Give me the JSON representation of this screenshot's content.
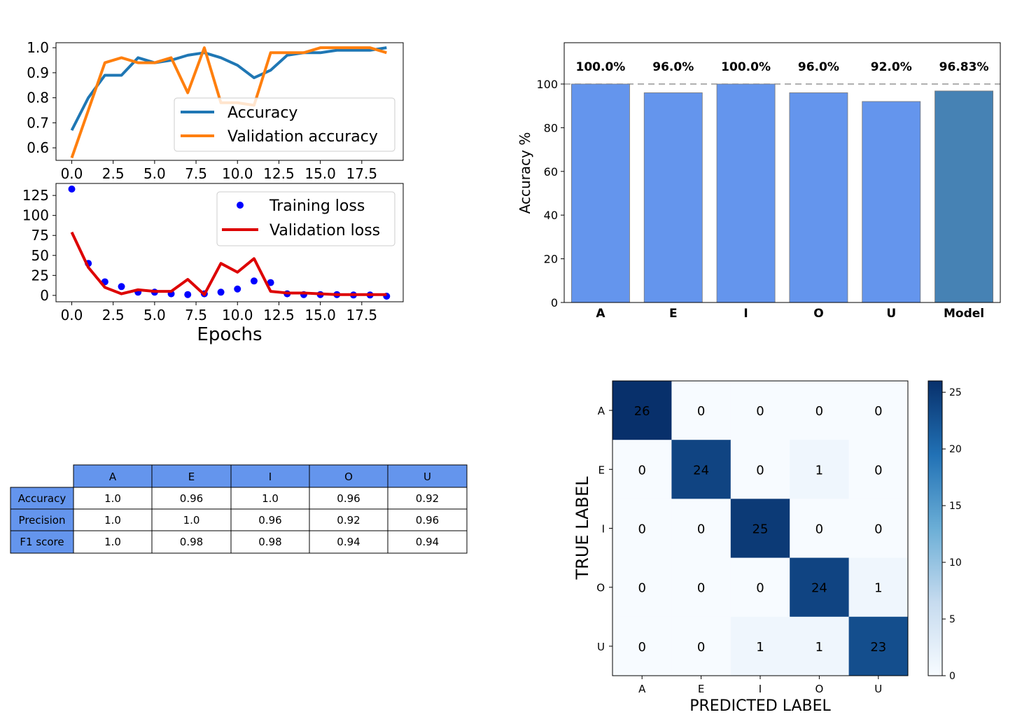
{
  "chart_data": [
    {
      "type": "line",
      "x": [
        0,
        1,
        2,
        3,
        4,
        5,
        6,
        7,
        8,
        9,
        10,
        11,
        12,
        13,
        14,
        15,
        16,
        17,
        18,
        19
      ],
      "xticks": [
        "0.0",
        "2.5",
        "5.0",
        "7.5",
        "10.0",
        "12.5",
        "15.0",
        "17.5"
      ],
      "yticks": [
        "0.6",
        "0.7",
        "0.8",
        "0.9",
        "1.0"
      ],
      "ylim": [
        0.55,
        1.02
      ],
      "legend_position": "center-right",
      "series": [
        {
          "name": "Accuracy",
          "color": "#1f77b4",
          "values": [
            0.67,
            0.8,
            0.89,
            0.89,
            0.96,
            0.94,
            0.95,
            0.97,
            0.98,
            0.96,
            0.93,
            0.88,
            0.91,
            0.97,
            0.98,
            0.98,
            0.99,
            0.99,
            0.99,
            1.0
          ]
        },
        {
          "name": "Validation accuracy",
          "color": "#ff7f0e",
          "values": [
            0.56,
            0.75,
            0.94,
            0.96,
            0.94,
            0.94,
            0.96,
            0.82,
            1.0,
            0.78,
            0.78,
            0.77,
            0.98,
            0.98,
            0.98,
            1.0,
            1.0,
            1.0,
            1.0,
            0.98
          ]
        }
      ]
    },
    {
      "type": "line",
      "x": [
        0,
        1,
        2,
        3,
        4,
        5,
        6,
        7,
        8,
        9,
        10,
        11,
        12,
        13,
        14,
        15,
        16,
        17,
        18,
        19
      ],
      "xticks": [
        "0.0",
        "2.5",
        "5.0",
        "7.5",
        "10.0",
        "12.5",
        "15.0",
        "17.5"
      ],
      "yticks": [
        "0",
        "25",
        "50",
        "75",
        "100",
        "125"
      ],
      "ylim": [
        -8,
        140
      ],
      "xlabel": "Epochs",
      "legend_position": "top-right",
      "series": [
        {
          "name": "Training loss",
          "color": "#0000ff",
          "style": "dots",
          "values": [
            133,
            40,
            17,
            11,
            4,
            4,
            2,
            1,
            2,
            4,
            8,
            18,
            16,
            2,
            1,
            1,
            1,
            0.5,
            0.5,
            -1
          ]
        },
        {
          "name": "Validation loss",
          "color": "#dd0000",
          "style": "line",
          "values": [
            79,
            35,
            10,
            2,
            7,
            5,
            5,
            20,
            1,
            40,
            29,
            46,
            5,
            3,
            3,
            2,
            1,
            1,
            1,
            1
          ]
        }
      ]
    },
    {
      "type": "bar",
      "categories": [
        "A",
        "E",
        "I",
        "O",
        "U",
        "Model"
      ],
      "values": [
        100.0,
        96.0,
        100.0,
        96.0,
        92.0,
        96.83
      ],
      "value_labels": [
        "100.0%",
        "96.0%",
        "100.0%",
        "96.0%",
        "92.0%",
        "96.83%"
      ],
      "colors": [
        "#6495ed",
        "#6495ed",
        "#6495ed",
        "#6495ed",
        "#6495ed",
        "#4682b4"
      ],
      "ylabel": "Accuracy %",
      "yticks": [
        "0",
        "20",
        "40",
        "60",
        "80",
        "100"
      ],
      "ylim": [
        0,
        100
      ],
      "reference_line": 100
    },
    {
      "type": "table",
      "columns": [
        "A",
        "E",
        "I",
        "O",
        "U"
      ],
      "rows": [
        {
          "label": "Accuracy",
          "values": [
            "1.0",
            "0.96",
            "1.0",
            "0.96",
            "0.92"
          ]
        },
        {
          "label": "Precision",
          "values": [
            "1.0",
            "1.0",
            "0.96",
            "0.92",
            "0.96"
          ]
        },
        {
          "label": "F1 score",
          "values": [
            "1.0",
            "0.98",
            "0.98",
            "0.94",
            "0.94"
          ]
        }
      ],
      "header_color": "#6495ed"
    },
    {
      "type": "heatmap",
      "row_labels": [
        "A",
        "E",
        "I",
        "O",
        "U"
      ],
      "col_labels": [
        "A",
        "E",
        "I",
        "O",
        "U"
      ],
      "matrix": [
        [
          26,
          0,
          0,
          0,
          0
        ],
        [
          0,
          24,
          0,
          1,
          0
        ],
        [
          0,
          0,
          25,
          0,
          0
        ],
        [
          0,
          0,
          0,
          24,
          1
        ],
        [
          0,
          0,
          1,
          1,
          23
        ]
      ],
      "xlabel": "PREDICTED LABEL",
      "ylabel": "TRUE LABEL",
      "colorbar_ticks": [
        "0",
        "5",
        "10",
        "15",
        "20",
        "25"
      ],
      "vmax": 26,
      "colormap": "Blues"
    }
  ]
}
